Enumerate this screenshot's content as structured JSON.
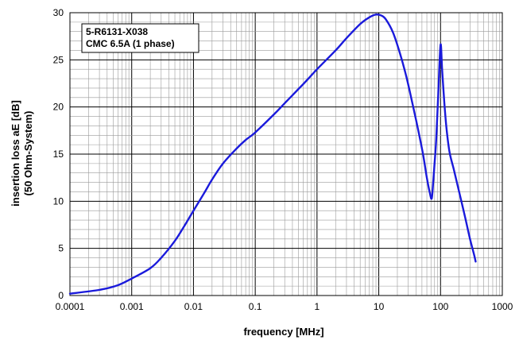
{
  "chart_data": {
    "type": "line",
    "title": "",
    "legend_box": {
      "line1": "5-R6131-X038",
      "line2": "CMC 6.5A (1 phase)",
      "placement": "top-left"
    },
    "xlabel": "frequency [MHz]",
    "ylabel": {
      "line1": "insertion loss  aE  [dB]",
      "line2": "(50 Ohm-System)"
    },
    "x_scale": "log",
    "xlim": [
      0.0001,
      1000
    ],
    "ylim": [
      0,
      30
    ],
    "x_ticks": [
      {
        "value": 0.0001,
        "label": "0.0001"
      },
      {
        "value": 0.001,
        "label": "0.001"
      },
      {
        "value": 0.01,
        "label": "0.01"
      },
      {
        "value": 0.1,
        "label": "0.1"
      },
      {
        "value": 1,
        "label": "1"
      },
      {
        "value": 10,
        "label": "10"
      },
      {
        "value": 100,
        "label": "100"
      },
      {
        "value": 1000,
        "label": "1000"
      }
    ],
    "y_ticks": [
      {
        "value": 0,
        "label": "0"
      },
      {
        "value": 5,
        "label": "5"
      },
      {
        "value": 10,
        "label": "10"
      },
      {
        "value": 15,
        "label": "15"
      },
      {
        "value": 20,
        "label": "20"
      },
      {
        "value": 25,
        "label": "25"
      },
      {
        "value": 30,
        "label": "30"
      }
    ],
    "grid": true,
    "line_color": "#1a1adb",
    "series": [
      {
        "x": [
          0.0001,
          0.0003,
          0.0006,
          0.001,
          0.002,
          0.003,
          0.005,
          0.007,
          0.01,
          0.015,
          0.02,
          0.03,
          0.05,
          0.07,
          0.1,
          0.2,
          0.3,
          0.5,
          0.7,
          1,
          2,
          3,
          5,
          7,
          9,
          11,
          13,
          17,
          22,
          28,
          35,
          43,
          52,
          60,
          67,
          72,
          76,
          80,
          85,
          92,
          100,
          106,
          115,
          125,
          140,
          165,
          200,
          250,
          300,
          350,
          370
        ],
        "y": [
          0.2,
          0.6,
          1.1,
          1.8,
          2.9,
          4.0,
          5.8,
          7.3,
          9.0,
          10.9,
          12.3,
          14.0,
          15.6,
          16.5,
          17.3,
          19.2,
          20.4,
          21.9,
          22.9,
          24.0,
          26.0,
          27.3,
          28.8,
          29.5,
          29.8,
          29.7,
          29.3,
          27.9,
          25.7,
          23.2,
          20.4,
          17.7,
          15.0,
          12.5,
          10.9,
          10.3,
          12.0,
          14.0,
          16.5,
          21.5,
          26.6,
          24.0,
          20.5,
          17.7,
          15.2,
          13.3,
          11.0,
          8.3,
          6.0,
          4.3,
          3.6
        ]
      }
    ]
  }
}
